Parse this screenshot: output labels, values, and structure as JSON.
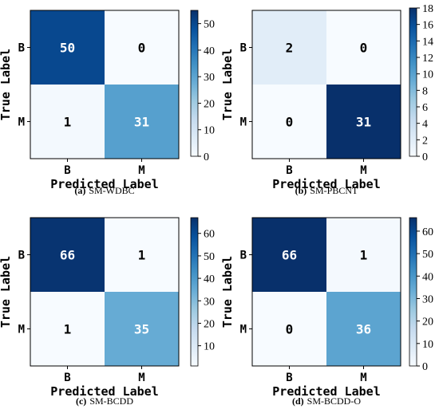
{
  "chart_data": [
    {
      "type": "heatmap",
      "caption_letter": "(a)",
      "caption": "SM-WDBC",
      "xlabel": "Predicted Label",
      "ylabel": "True Label",
      "x_categories": [
        "B",
        "M"
      ],
      "y_categories": [
        "B",
        "M"
      ],
      "values": [
        [
          50,
          0
        ],
        [
          1,
          31
        ]
      ],
      "value_labels": [
        "50",
        "0",
        "1",
        "31"
      ],
      "colorbar": {
        "min": 0,
        "max": 55,
        "ticks": [
          0,
          10,
          20,
          30,
          40,
          50
        ],
        "tick_labels": [
          "0",
          "10",
          "20",
          "30",
          "40",
          "50"
        ]
      }
    },
    {
      "type": "heatmap",
      "caption_letter": "(b)",
      "caption": "SM-PBCNT",
      "xlabel": "Predicted Label",
      "ylabel": "True Label",
      "x_categories": [
        "B",
        "M"
      ],
      "y_categories": [
        "B",
        "M"
      ],
      "values": [
        [
          2,
          0
        ],
        [
          0,
          31
        ]
      ],
      "value_labels": [
        "2",
        "0",
        "0",
        "31"
      ],
      "colorbar": {
        "min": 0,
        "max": 18,
        "ticks": [
          0,
          2,
          4,
          6,
          8,
          10,
          12,
          14,
          16,
          18
        ],
        "tick_labels": [
          "0",
          "2",
          "4",
          "6",
          "8",
          "10",
          "12",
          "14",
          "16",
          "18"
        ]
      }
    },
    {
      "type": "heatmap",
      "caption_letter": "(c)",
      "caption": "SM-BCDD",
      "xlabel": "Predicted Label",
      "ylabel": "True Label",
      "x_categories": [
        "B",
        "M"
      ],
      "y_categories": [
        "B",
        "M"
      ],
      "values": [
        [
          66,
          1
        ],
        [
          1,
          35
        ]
      ],
      "value_labels": [
        "66",
        "1",
        "1",
        "35"
      ],
      "colorbar": {
        "min": 1,
        "max": 67,
        "ticks": [
          10,
          20,
          30,
          40,
          50,
          60
        ],
        "tick_labels": [
          "10",
          "20",
          "30",
          "40",
          "50",
          "60"
        ]
      }
    },
    {
      "type": "heatmap",
      "caption_letter": "(d)",
      "caption": "SM-BCDD-O",
      "xlabel": "Predicted Label",
      "ylabel": "True Label",
      "x_categories": [
        "B",
        "M"
      ],
      "y_categories": [
        "B",
        "M"
      ],
      "values": [
        [
          66,
          1
        ],
        [
          0,
          36
        ]
      ],
      "value_labels": [
        "66",
        "1",
        "0",
        "36"
      ],
      "colorbar": {
        "min": 0,
        "max": 66,
        "ticks": [
          0,
          10,
          20,
          30,
          40,
          50,
          60
        ],
        "tick_labels": [
          "0",
          "10",
          "20",
          "30",
          "40",
          "50",
          "60"
        ]
      }
    }
  ]
}
